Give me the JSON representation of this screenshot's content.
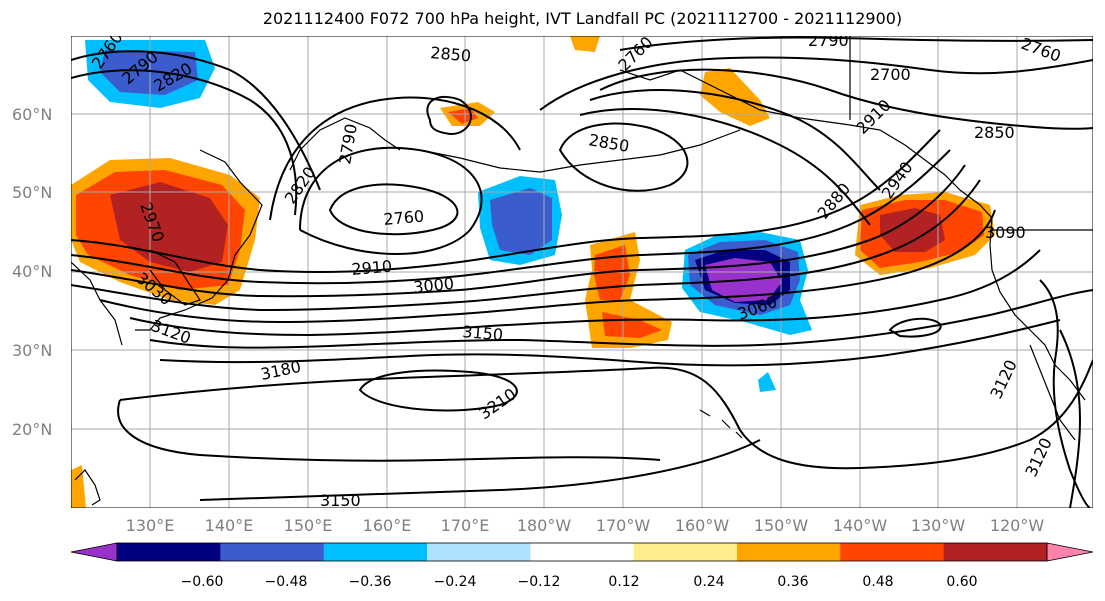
{
  "title": "2021112400 F072 700 hPa height, IVT Landfall PC (2021112700 - 2021112900)",
  "lat_labels": [
    "60°N",
    "50°N",
    "40°N",
    "30°N",
    "20°N"
  ],
  "lon_labels": [
    "130°E",
    "140°E",
    "150°E",
    "160°E",
    "170°E",
    "180°W",
    "170°W",
    "160°W",
    "150°W",
    "140°W",
    "130°W",
    "120°W"
  ],
  "contour_labels": [
    "2760",
    "2790",
    "2820",
    "2850",
    "2760",
    "2760",
    "2700",
    "2850",
    "2880",
    "2910",
    "2940",
    "2970",
    "3030",
    "3120",
    "3000",
    "2910",
    "3150",
    "3180",
    "3210",
    "3060",
    "3090",
    "3120",
    "3120",
    "3150",
    "2820",
    "2790",
    "2850",
    "2760",
    "2790"
  ],
  "colorbar": {
    "ticks": [
      "−0.60",
      "−0.48",
      "−0.36",
      "−0.24",
      "−0.12",
      "0.12",
      "0.24",
      "0.36",
      "0.48",
      "0.60"
    ],
    "colors": [
      "#9932cc",
      "#000080",
      "#3a5ccc",
      "#00bfff",
      "#b0e2ff",
      "#ffffff",
      "#ffec8b",
      "#ffa500",
      "#ff4500",
      "#b22222",
      "#ff82ab"
    ]
  }
}
